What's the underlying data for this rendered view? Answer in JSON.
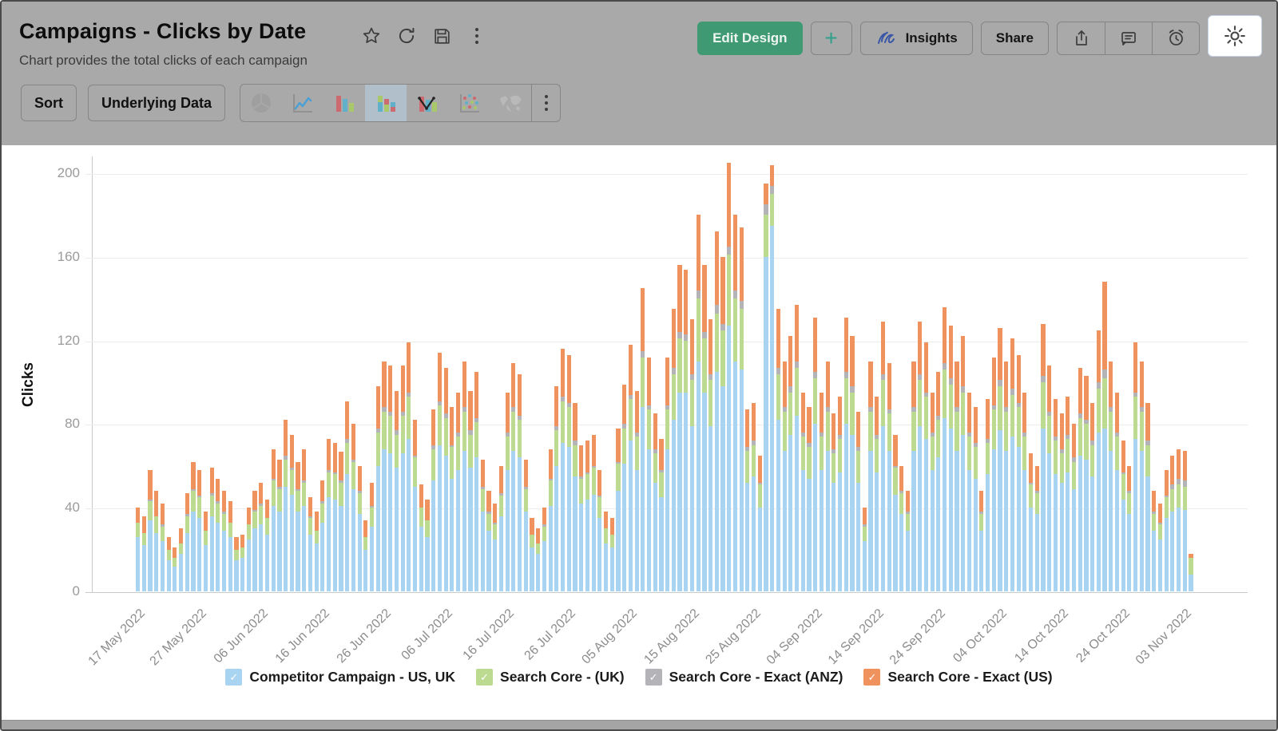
{
  "header": {
    "title": "Campaigns - Clicks by Date",
    "subtitle": "Chart provides the total clicks of each campaign",
    "actions": {
      "edit_design": "Edit Design",
      "add": "+",
      "insights": "Insights",
      "share": "Share"
    },
    "toolbar": {
      "sort": "Sort",
      "underlying_data": "Underlying Data"
    }
  },
  "chart_data": {
    "type": "bar",
    "stacked": true,
    "title": "Campaigns - Clicks by Date",
    "xlabel": "",
    "ylabel": "Clicks",
    "ylim": [
      0,
      200
    ],
    "yticks": [
      0,
      40,
      80,
      120,
      160,
      200
    ],
    "grid": true,
    "legend_position": "bottom",
    "start_date": "17 May 2022",
    "x_tick_every": 10,
    "x_tick_labels": [
      "17 May 2022",
      "27 May 2022",
      "06 Jun 2022",
      "16 Jun 2022",
      "26 Jun 2022",
      "06 Jul 2022",
      "16 Jul 2022",
      "26 Jul 2022",
      "05 Aug 2022",
      "15 Aug 2022",
      "25 Aug 2022",
      "04 Sep 2022",
      "14 Sep 2022",
      "24 Sep 2022",
      "04 Oct 2022",
      "14 Oct 2022",
      "24 Oct 2022",
      "03 Nov 2022"
    ],
    "series": [
      {
        "name": "Competitor Campaign - US, UK",
        "color": "#a8d4f2"
      },
      {
        "name": "Search Core - (UK)",
        "color": "#bcdb90"
      },
      {
        "name": "Search Core - Exact (ANZ)",
        "color": "#b4b3b7"
      },
      {
        "name": "Search Core - Exact (US)",
        "color": "#f0925e"
      }
    ],
    "bars": [
      [
        26,
        7,
        0,
        7
      ],
      [
        22,
        6,
        0,
        8
      ],
      [
        34,
        9,
        1,
        14
      ],
      [
        28,
        8,
        0,
        12
      ],
      [
        24,
        7,
        1,
        10
      ],
      [
        15,
        5,
        0,
        6
      ],
      [
        12,
        4,
        0,
        5
      ],
      [
        18,
        5,
        0,
        7
      ],
      [
        28,
        8,
        1,
        10
      ],
      [
        38,
        10,
        1,
        13
      ],
      [
        35,
        10,
        1,
        12
      ],
      [
        22,
        7,
        0,
        9
      ],
      [
        36,
        10,
        1,
        12
      ],
      [
        33,
        9,
        1,
        11
      ],
      [
        29,
        8,
        1,
        10
      ],
      [
        26,
        7,
        0,
        10
      ],
      [
        15,
        5,
        0,
        6
      ],
      [
        16,
        5,
        0,
        6
      ],
      [
        25,
        7,
        0,
        8
      ],
      [
        30,
        8,
        1,
        9
      ],
      [
        32,
        9,
        1,
        10
      ],
      [
        27,
        8,
        0,
        9
      ],
      [
        41,
        12,
        1,
        14
      ],
      [
        38,
        11,
        1,
        13
      ],
      [
        50,
        13,
        2,
        17
      ],
      [
        46,
        12,
        1,
        16
      ],
      [
        38,
        10,
        1,
        13
      ],
      [
        41,
        11,
        1,
        15
      ],
      [
        27,
        8,
        1,
        9
      ],
      [
        23,
        6,
        0,
        9
      ],
      [
        33,
        9,
        1,
        10
      ],
      [
        45,
        12,
        1,
        15
      ],
      [
        44,
        12,
        1,
        14
      ],
      [
        41,
        11,
        1,
        14
      ],
      [
        56,
        15,
        2,
        18
      ],
      [
        49,
        13,
        1,
        17
      ],
      [
        37,
        10,
        1,
        12
      ],
      [
        20,
        6,
        0,
        8
      ],
      [
        31,
        9,
        1,
        11
      ],
      [
        60,
        16,
        2,
        20
      ],
      [
        68,
        18,
        2,
        22
      ],
      [
        66,
        18,
        2,
        22
      ],
      [
        59,
        16,
        2,
        19
      ],
      [
        66,
        18,
        2,
        22
      ],
      [
        73,
        20,
        2,
        24
      ],
      [
        50,
        14,
        1,
        17
      ],
      [
        31,
        9,
        0,
        11
      ],
      [
        26,
        8,
        0,
        10
      ],
      [
        53,
        15,
        2,
        17
      ],
      [
        70,
        19,
        2,
        23
      ],
      [
        65,
        18,
        2,
        22
      ],
      [
        54,
        15,
        1,
        18
      ],
      [
        58,
        16,
        2,
        19
      ],
      [
        67,
        19,
        2,
        22
      ],
      [
        59,
        16,
        2,
        19
      ],
      [
        64,
        17,
        2,
        22
      ],
      [
        38,
        11,
        1,
        13
      ],
      [
        29,
        8,
        1,
        10
      ],
      [
        25,
        7,
        1,
        9
      ],
      [
        36,
        10,
        1,
        13
      ],
      [
        58,
        16,
        2,
        19
      ],
      [
        67,
        19,
        2,
        21
      ],
      [
        64,
        18,
        2,
        20
      ],
      [
        38,
        11,
        1,
        13
      ],
      [
        21,
        6,
        0,
        8
      ],
      [
        18,
        5,
        0,
        7
      ],
      [
        24,
        7,
        1,
        8
      ],
      [
        41,
        12,
        1,
        14
      ],
      [
        60,
        17,
        2,
        19
      ],
      [
        71,
        20,
        2,
        23
      ],
      [
        69,
        19,
        2,
        23
      ],
      [
        55,
        15,
        2,
        18
      ],
      [
        42,
        12,
        1,
        15
      ],
      [
        44,
        12,
        1,
        15
      ],
      [
        46,
        13,
        1,
        15
      ],
      [
        35,
        10,
        1,
        12
      ],
      [
        23,
        7,
        0,
        8
      ],
      [
        21,
        6,
        0,
        8
      ],
      [
        48,
        13,
        1,
        16
      ],
      [
        61,
        17,
        2,
        19
      ],
      [
        72,
        20,
        2,
        24
      ],
      [
        58,
        16,
        2,
        20
      ],
      [
        88,
        24,
        3,
        30
      ],
      [
        68,
        19,
        2,
        23
      ],
      [
        52,
        14,
        2,
        17
      ],
      [
        45,
        12,
        1,
        15
      ],
      [
        68,
        19,
        2,
        23
      ],
      [
        82,
        22,
        3,
        28
      ],
      [
        95,
        26,
        3,
        32
      ],
      [
        95,
        25,
        3,
        31
      ],
      [
        79,
        22,
        3,
        26
      ],
      [
        110,
        30,
        4,
        36
      ],
      [
        95,
        26,
        3,
        32
      ],
      [
        79,
        22,
        3,
        26
      ],
      [
        105,
        28,
        4,
        35
      ],
      [
        98,
        27,
        3,
        32
      ],
      [
        127,
        34,
        4,
        40
      ],
      [
        110,
        30,
        4,
        36
      ],
      [
        106,
        29,
        4,
        35
      ],
      [
        52,
        15,
        2,
        18
      ],
      [
        55,
        15,
        2,
        18
      ],
      [
        40,
        11,
        1,
        13
      ],
      [
        160,
        20,
        5,
        10
      ],
      [
        175,
        15,
        4,
        10
      ],
      [
        82,
        22,
        3,
        28
      ],
      [
        67,
        19,
        2,
        22
      ],
      [
        75,
        20,
        3,
        24
      ],
      [
        84,
        23,
        3,
        27
      ],
      [
        58,
        16,
        2,
        19
      ],
      [
        54,
        15,
        2,
        17
      ],
      [
        80,
        22,
        3,
        26
      ],
      [
        58,
        16,
        2,
        19
      ],
      [
        67,
        19,
        2,
        22
      ],
      [
        52,
        14,
        2,
        17
      ],
      [
        57,
        16,
        2,
        18
      ],
      [
        80,
        22,
        3,
        26
      ],
      [
        75,
        20,
        3,
        24
      ],
      [
        52,
        15,
        2,
        17
      ],
      [
        24,
        7,
        1,
        8
      ],
      [
        67,
        19,
        2,
        22
      ],
      [
        57,
        16,
        2,
        18
      ],
      [
        79,
        22,
        3,
        25
      ],
      [
        67,
        18,
        2,
        22
      ],
      [
        46,
        13,
        1,
        15
      ],
      [
        37,
        10,
        1,
        12
      ],
      [
        29,
        8,
        1,
        10
      ],
      [
        67,
        19,
        2,
        22
      ],
      [
        79,
        22,
        3,
        25
      ],
      [
        73,
        20,
        2,
        24
      ],
      [
        58,
        16,
        2,
        19
      ],
      [
        64,
        18,
        2,
        21
      ],
      [
        83,
        23,
        3,
        27
      ],
      [
        78,
        21,
        3,
        25
      ],
      [
        67,
        19,
        2,
        22
      ],
      [
        75,
        20,
        3,
        24
      ],
      [
        58,
        16,
        2,
        19
      ],
      [
        54,
        15,
        2,
        17
      ],
      [
        29,
        8,
        1,
        10
      ],
      [
        56,
        15,
        2,
        19
      ],
      [
        68,
        19,
        2,
        23
      ],
      [
        77,
        21,
        3,
        25
      ],
      [
        67,
        19,
        2,
        22
      ],
      [
        74,
        20,
        3,
        24
      ],
      [
        69,
        19,
        2,
        23
      ],
      [
        58,
        16,
        2,
        19
      ],
      [
        40,
        11,
        1,
        14
      ],
      [
        37,
        10,
        1,
        12
      ],
      [
        78,
        22,
        3,
        25
      ],
      [
        66,
        18,
        2,
        22
      ],
      [
        56,
        16,
        2,
        18
      ],
      [
        52,
        14,
        2,
        17
      ],
      [
        57,
        16,
        2,
        18
      ],
      [
        49,
        13,
        2,
        16
      ],
      [
        65,
        18,
        2,
        22
      ],
      [
        63,
        17,
        2,
        21
      ],
      [
        55,
        15,
        2,
        18
      ],
      [
        76,
        21,
        3,
        25
      ],
      [
        78,
        24,
        4,
        42
      ],
      [
        67,
        19,
        2,
        22
      ],
      [
        58,
        16,
        2,
        19
      ],
      [
        44,
        12,
        1,
        15
      ],
      [
        37,
        10,
        1,
        12
      ],
      [
        73,
        20,
        2,
        24
      ],
      [
        67,
        19,
        2,
        22
      ],
      [
        55,
        15,
        2,
        18
      ],
      [
        29,
        8,
        1,
        10
      ],
      [
        25,
        7,
        1,
        9
      ],
      [
        35,
        10,
        1,
        12
      ],
      [
        38,
        11,
        2,
        14
      ],
      [
        40,
        11,
        3,
        14
      ],
      [
        39,
        11,
        3,
        14
      ],
      [
        8,
        8,
        0,
        2
      ]
    ]
  }
}
